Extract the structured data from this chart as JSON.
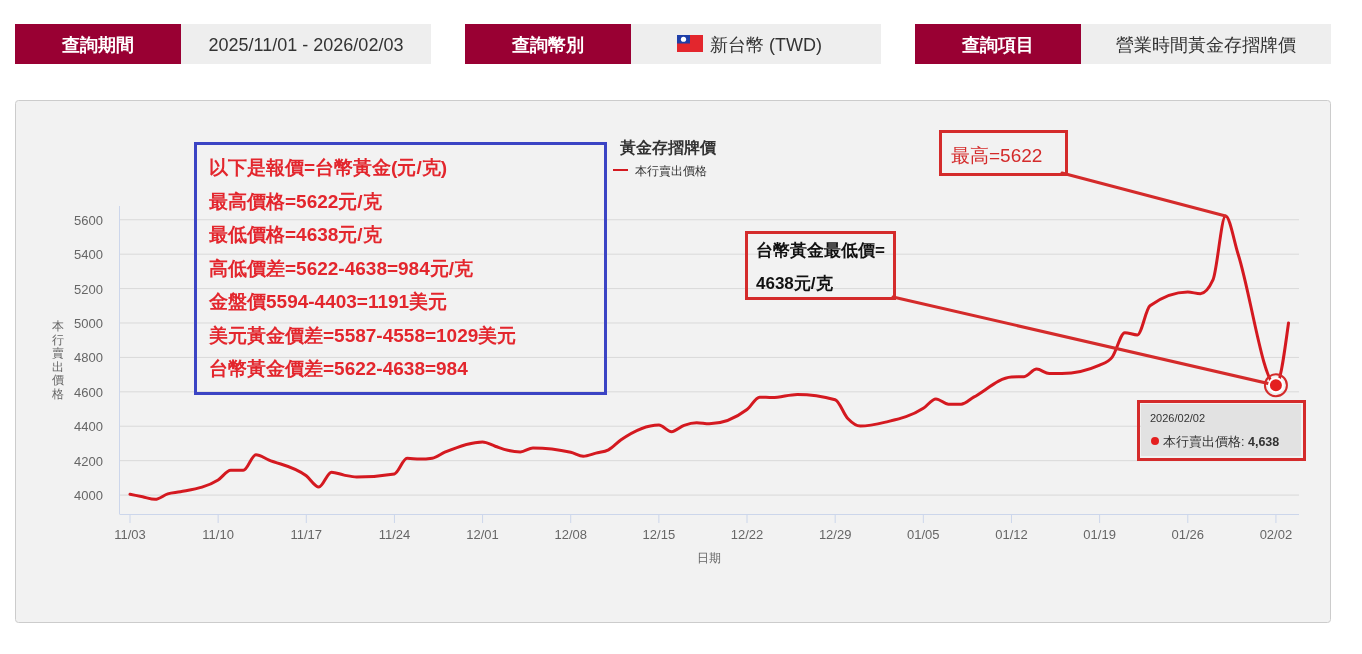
{
  "chart_data": {
    "type": "line",
    "title": "黃金存摺牌價",
    "xlabel": "日期",
    "ylabel": "本行賣出價格",
    "x": [
      "2025-11-03",
      "2025-11-04",
      "2025-11-05",
      "2025-11-06",
      "2025-11-07",
      "2025-11-10",
      "2025-11-11",
      "2025-11-12",
      "2025-11-13",
      "2025-11-14",
      "2025-11-17",
      "2025-11-18",
      "2025-11-19",
      "2025-11-20",
      "2025-11-21",
      "2025-11-24",
      "2025-11-25",
      "2025-11-26",
      "2025-11-27",
      "2025-11-28",
      "2025-12-01",
      "2025-12-02",
      "2025-12-03",
      "2025-12-04",
      "2025-12-05",
      "2025-12-08",
      "2025-12-09",
      "2025-12-10",
      "2025-12-11",
      "2025-12-12",
      "2025-12-15",
      "2025-12-16",
      "2025-12-17",
      "2025-12-18",
      "2025-12-19",
      "2025-12-22",
      "2025-12-23",
      "2025-12-24",
      "2025-12-26",
      "2025-12-29",
      "2025-12-30",
      "2025-12-31",
      "2026-01-02",
      "2026-01-05",
      "2026-01-06",
      "2026-01-07",
      "2026-01-08",
      "2026-01-09",
      "2026-01-12",
      "2026-01-13",
      "2026-01-14",
      "2026-01-15",
      "2026-01-16",
      "2026-01-19",
      "2026-01-20",
      "2026-01-21",
      "2026-01-22",
      "2026-01-23",
      "2026-01-26",
      "2026-01-27",
      "2026-01-28",
      "2026-01-29",
      "2026-01-30",
      "2026-02-02",
      "2026-02-03"
    ],
    "series": [
      {
        "name": "本行賣出價格",
        "color": "#d41920",
        "values": [
          4005,
          3990,
          3975,
          4007,
          4019,
          4088,
          4144,
          4144,
          4235,
          4205,
          4112,
          4047,
          4133,
          4116,
          4105,
          4123,
          4214,
          4209,
          4214,
          4249,
          4309,
          4284,
          4260,
          4251,
          4274,
          4249,
          4226,
          4244,
          4263,
          4321,
          4407,
          4368,
          4405,
          4420,
          4414,
          4497,
          4569,
          4567,
          4585,
          4554,
          4445,
          4401,
          4424,
          4504,
          4559,
          4528,
          4528,
          4569,
          4686,
          4688,
          4732,
          4706,
          4706,
          4755,
          4802,
          4944,
          4931,
          5100,
          5180,
          5170,
          5250,
          5622,
          5400,
          4638,
          5000
        ]
      }
    ],
    "xlim": [
      "2025-11-02T04:00",
      "2026-02-03T20:00"
    ],
    "xticks": [
      {
        "value": "2025-11-03",
        "label": "11/03"
      },
      {
        "value": "2025-11-10",
        "label": "11/10"
      },
      {
        "value": "2025-11-17",
        "label": "11/17"
      },
      {
        "value": "2025-11-24",
        "label": "11/24"
      },
      {
        "value": "2025-12-01",
        "label": "12/01"
      },
      {
        "value": "2025-12-08",
        "label": "12/08"
      },
      {
        "value": "2025-12-15",
        "label": "12/15"
      },
      {
        "value": "2025-12-22",
        "label": "12/22"
      },
      {
        "value": "2025-12-29",
        "label": "12/29"
      },
      {
        "value": "2026-01-05",
        "label": "01/05"
      },
      {
        "value": "2026-01-12",
        "label": "01/12"
      },
      {
        "value": "2026-01-19",
        "label": "01/19"
      },
      {
        "value": "2026-01-26",
        "label": "01/26"
      },
      {
        "value": "2026-02-02",
        "label": "02/02"
      }
    ],
    "ylim": [
      3890,
      5680
    ],
    "yticks": [
      4000,
      4200,
      4400,
      4600,
      4800,
      5000,
      5200,
      5400,
      5600
    ],
    "grid": "y",
    "legend": "top",
    "marker": "none",
    "line_style": "solid",
    "annotations": [
      "查詢期間",
      "2025/11/01 - 2026/02/03",
      "查詢幣別",
      "新台幣 (TWD)",
      "查詢項目",
      "營業時間黃金存摺牌價",
      "以下是報價=台幣黃金(元/克)",
      "最高價格=5622元/克",
      "最低價格=4638元/克",
      "高低價差=5622-4638=984元/克",
      "金盤價5594-4403=1191美元",
      "美元黃金價差=5587-4558=1029美元",
      "台幣黃金價差=5622-4638=984",
      {
        "text": "最高=5622",
        "x": "2026-01-29",
        "y": 5622
      },
      {
        "text": "台幣黃金最低價=\n4638元/克",
        "x": "2026-02-02",
        "y": 4638
      },
      {
        "text": "2026/02/02\n本行賣出價格: 4,638",
        "x": "2026-02-02",
        "y": 4638
      }
    ]
  }
}
